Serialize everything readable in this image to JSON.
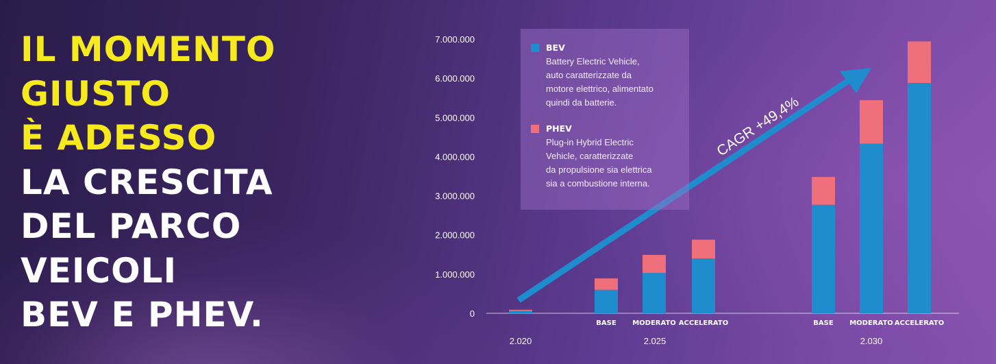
{
  "headline": {
    "yellow_lines": [
      "IL MOMENTO",
      "GIUSTO",
      "È ADESSO"
    ],
    "white_lines": [
      "LA CRESCITA",
      "DEL PARCO",
      "VEICOLI",
      "BEV E PHEV."
    ]
  },
  "colors": {
    "headline_yellow": "#f7ea1c",
    "bev": "#1e8ccd",
    "phev": "#ef6f7b",
    "arrow": "#1e8ccd"
  },
  "legend": {
    "items": [
      {
        "name": "BEV",
        "description_lines": [
          "Battery Electric Vehicle,",
          "auto caratterizzate da",
          "motore elettrico, alimentato",
          "quindi da batterie."
        ]
      },
      {
        "name": "PHEV",
        "description_lines": [
          "Plug-in Hybrid Electric",
          "Vehicle, caratterizzate",
          "da propulsione sia elettrica",
          "sia a combustione interna."
        ]
      }
    ]
  },
  "chart_data": {
    "type": "bar",
    "stacked": true,
    "ylim": [
      0,
      7000000
    ],
    "y_ticks": [
      0,
      1000000,
      2000000,
      3000000,
      4000000,
      5000000,
      6000000,
      7000000
    ],
    "y_tick_labels": [
      "0",
      "1.000.000",
      "2.000.000",
      "3.000.000",
      "4.000.000",
      "5.000.000",
      "6.000.000",
      "7.000.000"
    ],
    "categories": [
      "",
      "BASE",
      "MODERATO",
      "ACCELERATO",
      "BASE",
      "MODERATO",
      "ACCELERATO"
    ],
    "groups": [
      {
        "label": "2.020",
        "categories": [
          0
        ]
      },
      {
        "label": "2.025",
        "categories": [
          1,
          2,
          3
        ]
      },
      {
        "label": "2.030",
        "categories": [
          4,
          5,
          6
        ]
      }
    ],
    "series": [
      {
        "name": "BEV",
        "values": [
          60000,
          600000,
          1030000,
          1400000,
          2770000,
          4330000,
          5880000
        ]
      },
      {
        "name": "PHEV",
        "values": [
          30000,
          290000,
          460000,
          480000,
          710000,
          1110000,
          1060000
        ]
      }
    ],
    "annotation": "CAGR +49,4%",
    "grid": false,
    "legend_position": "top-left"
  }
}
